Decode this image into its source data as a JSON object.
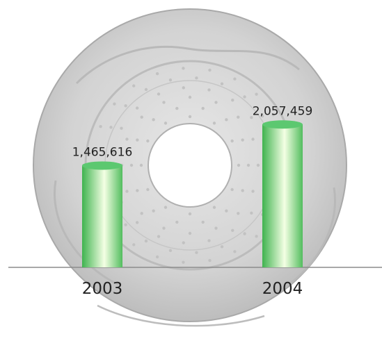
{
  "chart_data": {
    "type": "bar",
    "title": "",
    "xlabel": "",
    "ylabel": "",
    "categories": [
      "2003",
      "2004"
    ],
    "values": [
      1465616,
      2057459
    ],
    "value_labels": [
      "1,465,616",
      "2,057,459"
    ],
    "ylim": [
      0,
      2300000
    ],
    "grid": false,
    "legend": "none",
    "colors": {
      "bar_dark": "#3fb34f",
      "bar_light": "#f4ffe4",
      "bar_top": "#5cc870",
      "baseline": "#8c8c8c",
      "text": "#222222",
      "disc": "#cfcfcf"
    }
  }
}
